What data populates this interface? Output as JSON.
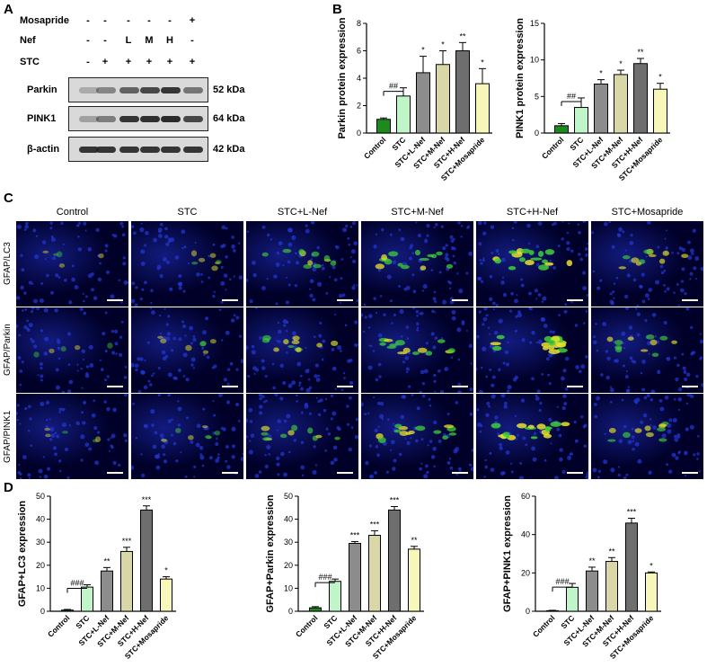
{
  "panels": {
    "a": "A",
    "b": "B",
    "c": "C",
    "d": "D"
  },
  "western": {
    "row_labels": [
      "Mosapride",
      "Nef",
      "STC"
    ],
    "signs": [
      [
        "-",
        "-",
        "-",
        "-",
        "-",
        "+"
      ],
      [
        "-",
        "-",
        "L",
        "M",
        "H",
        "-"
      ],
      [
        "-",
        "+",
        "+",
        "+",
        "+",
        "+"
      ]
    ],
    "blots": [
      {
        "name": "Parkin",
        "size": "52 kDa",
        "intensity": [
          0.25,
          0.45,
          0.65,
          0.8,
          0.9,
          0.55
        ]
      },
      {
        "name": "PINK1",
        "size": "64 kDa",
        "intensity": [
          0.3,
          0.5,
          0.9,
          0.92,
          0.95,
          0.8
        ]
      },
      {
        "name": "β-actin",
        "size": "42 kDa",
        "intensity": [
          0.9,
          0.9,
          0.9,
          0.9,
          0.9,
          0.9
        ]
      }
    ]
  },
  "microscopy": {
    "columns": [
      "Control",
      "STC",
      "STC+L-Nef",
      "STC+M-Nef",
      "STC+H-Nef",
      "STC+Mosapride"
    ],
    "rows": [
      "GFAP/LC3",
      "GFAP/Parkin",
      "GFAP/PINK1"
    ]
  },
  "colors": {
    "control": "#1e8a1e",
    "stc": "#bff5c9",
    "l_nef": "#8c8c8c",
    "m_nef": "#d9d7a8",
    "h_nef": "#6e6e6e",
    "mosapride": "#f6f7b8"
  },
  "chart_data": [
    {
      "type": "bar",
      "ylabel": "Parkin protein expression",
      "categories": [
        "Control",
        "STC",
        "STC+L-Nef",
        "STC+M-Nef",
        "STC+H-Nef",
        "STC+Mosapride"
      ],
      "values": [
        1.0,
        2.7,
        4.4,
        5.0,
        6.0,
        3.6
      ],
      "errors": [
        0.1,
        0.6,
        1.2,
        1.0,
        0.6,
        1.1
      ],
      "ylim": [
        0,
        8
      ],
      "yticks": [
        "0",
        "2",
        "4",
        "6",
        "8"
      ],
      "sig": [
        "",
        "",
        "*",
        "*",
        "**",
        "*"
      ],
      "bracket": "##"
    },
    {
      "type": "bar",
      "ylabel": "PINK1 protein expression",
      "categories": [
        "Control",
        "STC",
        "STC+L-Nef",
        "STC+M-Nef",
        "STC+H-Nef",
        "STC+Mosapride"
      ],
      "values": [
        1.0,
        3.5,
        6.7,
        8.0,
        9.5,
        6.0
      ],
      "errors": [
        0.3,
        1.3,
        0.6,
        0.6,
        0.7,
        0.8
      ],
      "ylim": [
        0,
        15
      ],
      "yticks": [
        "0",
        "5",
        "10",
        "15"
      ],
      "sig": [
        "",
        "",
        "*",
        "*",
        "**",
        "*"
      ],
      "bracket": "##"
    },
    {
      "type": "bar",
      "ylabel": "GFAP+LC3 expression",
      "categories": [
        "Control",
        "STC",
        "STC+L-Nef",
        "STC+M-Nef",
        "STC+H-Nef",
        "STC+Mosapride"
      ],
      "values": [
        0.5,
        10.5,
        17.5,
        26.0,
        44.0,
        14.0
      ],
      "errors": [
        0.3,
        1.0,
        1.5,
        1.8,
        1.8,
        1.0
      ],
      "ylim": [
        0,
        50
      ],
      "yticks": [
        "0",
        "10",
        "20",
        "30",
        "40",
        "50"
      ],
      "sig": [
        "",
        "",
        "**",
        "***",
        "***",
        "*"
      ],
      "bracket": "###"
    },
    {
      "type": "bar",
      "ylabel": "GFAP+Parkin expression",
      "categories": [
        "Control",
        "STC",
        "STC+L-Nef",
        "STC+M-Nef",
        "STC+H-Nef",
        "STC+Mosapride"
      ],
      "values": [
        1.5,
        13.0,
        29.5,
        33.0,
        44.0,
        27.0
      ],
      "errors": [
        0.5,
        1.0,
        0.8,
        2.0,
        1.5,
        1.2
      ],
      "ylim": [
        0,
        50
      ],
      "yticks": [
        "0",
        "10",
        "20",
        "30",
        "40",
        "50"
      ],
      "sig": [
        "",
        "",
        "***",
        "***",
        "***",
        "**"
      ],
      "bracket": "###"
    },
    {
      "type": "bar",
      "ylabel": "GFAP+PINK1 expression",
      "categories": [
        "Control",
        "STC",
        "STC+L-Nef",
        "STC+M-Nef",
        "STC+H-Nef",
        "STC+Mosapride"
      ],
      "values": [
        0.3,
        12.5,
        21.0,
        26.0,
        46.0,
        20.0
      ],
      "errors": [
        0.2,
        2.0,
        2.0,
        2.0,
        2.5,
        0.5
      ],
      "ylim": [
        0,
        60
      ],
      "yticks": [
        "0",
        "20",
        "40",
        "60"
      ],
      "sig": [
        "",
        "",
        "**",
        "**",
        "***",
        "*"
      ],
      "bracket": "###"
    }
  ]
}
